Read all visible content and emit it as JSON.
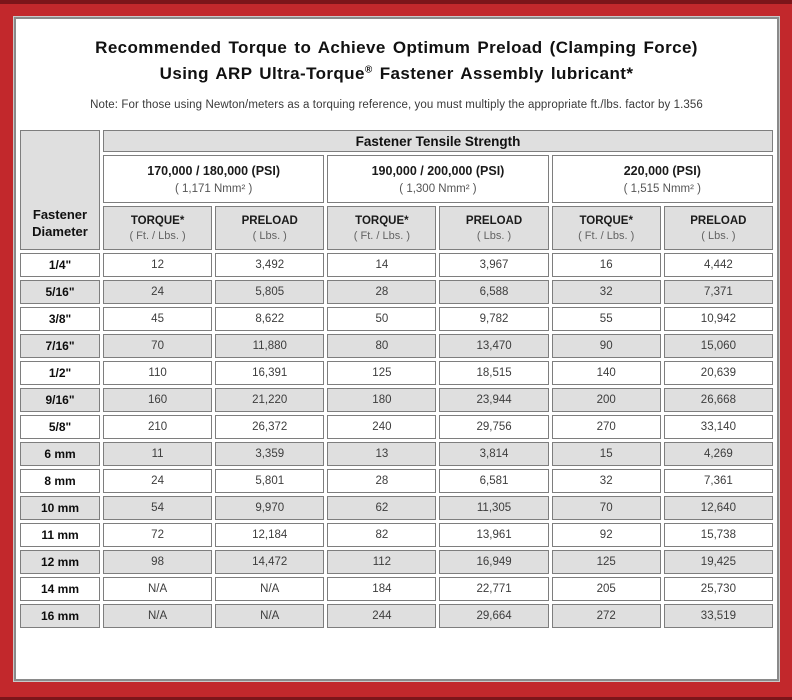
{
  "header": {
    "title_line1": "Recommended Torque to Achieve Optimum Preload (Clamping Force)",
    "title_line2_pre": "Using ARP Ultra-Torque",
    "title_reg_mark": "®",
    "title_line2_post": " Fastener Assembly lubricant*",
    "note": "Note: For those using Newton/meters as a torquing reference, you must multiply the appropriate ft./lbs. factor by 1.356"
  },
  "table": {
    "corner_header": "Fastener Diameter",
    "tensile_strength_header": "Fastener Tensile Strength",
    "groups": [
      {
        "psi": "170,000 / 180,000 (PSI)",
        "nmm": "( 1,171 Nmm² )"
      },
      {
        "psi": "190,000 / 200,000 (PSI)",
        "nmm": "( 1,300 Nmm² )"
      },
      {
        "psi": "220,000 (PSI)",
        "nmm": "( 1,515 Nmm² )"
      }
    ],
    "col_headers": {
      "torque_label": "TORQUE*",
      "torque_unit": "( Ft. / Lbs. )",
      "preload_label": "PRELOAD",
      "preload_unit": "( Lbs. )"
    },
    "rows": [
      {
        "diameter": "1/4\"",
        "values": [
          "12",
          "3,492",
          "14",
          "3,967",
          "16",
          "4,442"
        ]
      },
      {
        "diameter": "5/16\"",
        "values": [
          "24",
          "5,805",
          "28",
          "6,588",
          "32",
          "7,371"
        ]
      },
      {
        "diameter": "3/8\"",
        "values": [
          "45",
          "8,622",
          "50",
          "9,782",
          "55",
          "10,942"
        ]
      },
      {
        "diameter": "7/16\"",
        "values": [
          "70",
          "11,880",
          "80",
          "13,470",
          "90",
          "15,060"
        ]
      },
      {
        "diameter": "1/2\"",
        "values": [
          "110",
          "16,391",
          "125",
          "18,515",
          "140",
          "20,639"
        ]
      },
      {
        "diameter": "9/16\"",
        "values": [
          "160",
          "21,220",
          "180",
          "23,944",
          "200",
          "26,668"
        ]
      },
      {
        "diameter": "5/8\"",
        "values": [
          "210",
          "26,372",
          "240",
          "29,756",
          "270",
          "33,140"
        ]
      },
      {
        "diameter": "6 mm",
        "values": [
          "11",
          "3,359",
          "13",
          "3,814",
          "15",
          "4,269"
        ]
      },
      {
        "diameter": "8 mm",
        "values": [
          "24",
          "5,801",
          "28",
          "6,581",
          "32",
          "7,361"
        ]
      },
      {
        "diameter": "10 mm",
        "values": [
          "54",
          "9,970",
          "62",
          "11,305",
          "70",
          "12,640"
        ]
      },
      {
        "diameter": "11 mm",
        "values": [
          "72",
          "12,184",
          "82",
          "13,961",
          "92",
          "15,738"
        ]
      },
      {
        "diameter": "12 mm",
        "values": [
          "98",
          "14,472",
          "112",
          "16,949",
          "125",
          "19,425"
        ]
      },
      {
        "diameter": "14 mm",
        "values": [
          "N/A",
          "N/A",
          "184",
          "22,771",
          "205",
          "25,730"
        ]
      },
      {
        "diameter": "16 mm",
        "values": [
          "N/A",
          "N/A",
          "244",
          "29,664",
          "272",
          "33,519"
        ]
      }
    ],
    "accent_colors": {
      "frame_red": "#c2282c",
      "frame_dark_red": "#7c151a",
      "shaded_cell_gray": "#dfdfdf",
      "cell_border_gray": "#7e7e7e"
    }
  }
}
